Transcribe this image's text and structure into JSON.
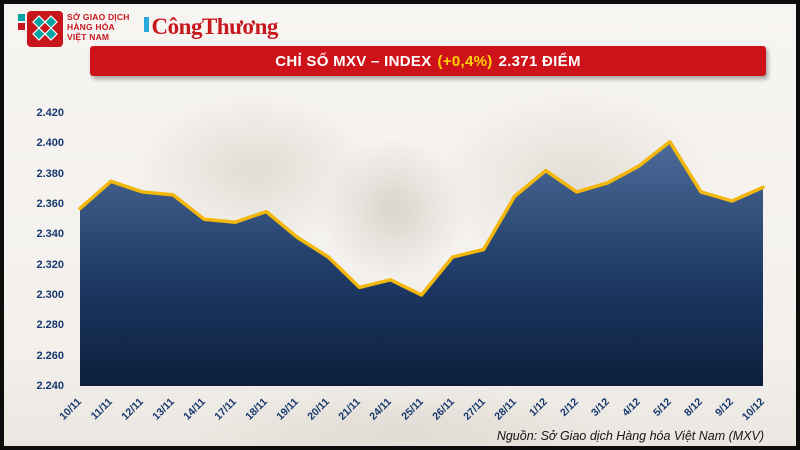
{
  "page": {
    "bg_color": "#f5f3ef",
    "frame_color": "#0d0d0d"
  },
  "logos": {
    "mxv": {
      "square_color": "#c8161d",
      "diamond_color": "#00a5a3",
      "text_lines": [
        "SỞ GIAO DỊCH",
        "HÀNG HÓA",
        "VIỆT NAM"
      ],
      "text_color": "#c8161d"
    },
    "newspaper": {
      "name": "CôngThương",
      "color": "#c8161d",
      "mark_color": "#2aa9de"
    }
  },
  "header": {
    "banner_color": "#ce1219",
    "text_color": "#ffffff",
    "title_prefix": "CHỈ SỐ MXV – INDEX",
    "title_change": "(+0,4%)",
    "title_change_color": "#ffd400",
    "title_suffix": "2.371 ĐIỂM"
  },
  "footer": {
    "source": "Nguồn: Sở Giao dịch Hàng hóa Việt Nam (MXV)"
  },
  "chart_data": {
    "type": "area",
    "title": "Chỉ số MXV-Index (điểm)",
    "x": [
      "10/11",
      "11/11",
      "12/11",
      "13/11",
      "14/11",
      "17/11",
      "18/11",
      "19/11",
      "20/11",
      "21/11",
      "24/11",
      "25/11",
      "26/11",
      "27/11",
      "28/11",
      "1/12",
      "2/12",
      "3/12",
      "4/12",
      "5/12",
      "8/12",
      "9/12",
      "10/12"
    ],
    "values": [
      2.357,
      2.375,
      2.368,
      2.366,
      2.35,
      2.348,
      2.355,
      2.338,
      2.325,
      2.305,
      2.31,
      2.3,
      2.325,
      2.33,
      2.365,
      2.382,
      2.368,
      2.374,
      2.385,
      2.401,
      2.368,
      2.362,
      2.371
    ],
    "ylim": [
      2.24,
      2.42
    ],
    "yticks": [
      "2.240",
      "2.260",
      "2.280",
      "2.300",
      "2.320",
      "2.340",
      "2.360",
      "2.380",
      "2.400",
      "2.420"
    ],
    "grid": false,
    "legend": false,
    "line_color": "#f2b70a",
    "area_top_color": "#4d6c99",
    "area_mid_color": "#1e3a66",
    "area_bottom_color": "#0c1e3c",
    "axis_label_color": "#17386e"
  }
}
